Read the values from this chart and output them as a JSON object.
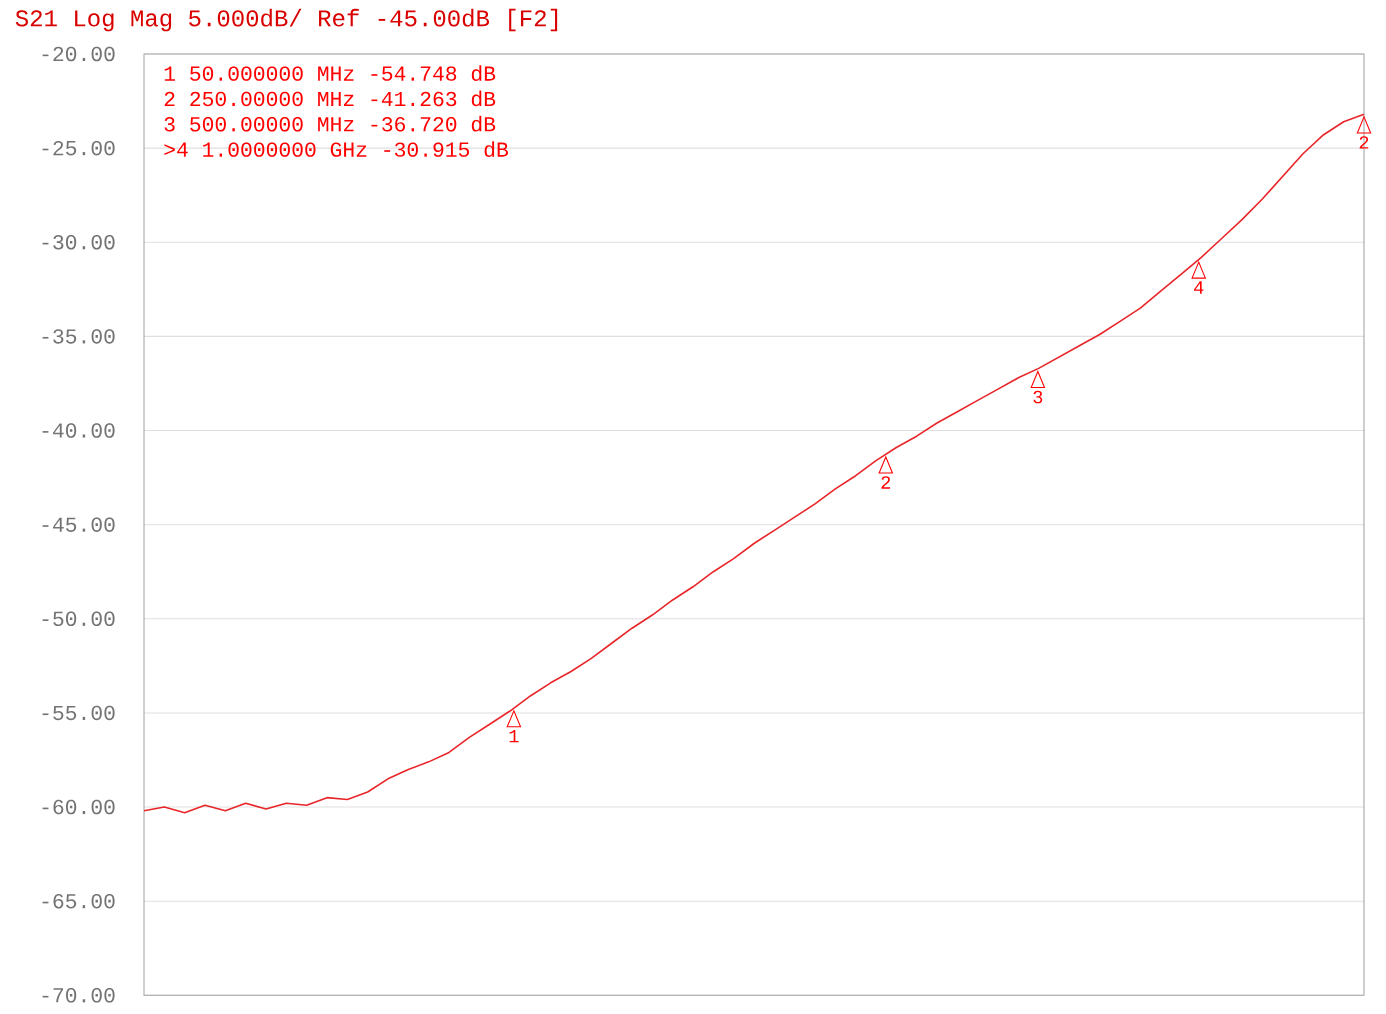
{
  "chart_data": {
    "type": "line",
    "title": "S21 Log Mag 5.000dB/ Ref -45.00dB [F2]",
    "categories": [
      null,
      null,
      null,
      null,
      null,
      null,
      null,
      null,
      null,
      null,
      null,
      null,
      null,
      null,
      null,
      null,
      null,
      null,
      null,
      null,
      null,
      null,
      null,
      null,
      null,
      null,
      null,
      null,
      null,
      null,
      null,
      null,
      null,
      null,
      null,
      null,
      null,
      null,
      null,
      null,
      null,
      null,
      null,
      null,
      null,
      null,
      null,
      null,
      null,
      null,
      null,
      null,
      null,
      null,
      null,
      null,
      null,
      null,
      null,
      null,
      null
    ],
    "series": [
      {
        "color": "#e8262a",
        "values": [
          -60.2,
          -60.0,
          -60.3,
          -59.9,
          -60.2,
          -59.8,
          -60.1,
          -59.8,
          -59.9,
          -59.5,
          -59.6,
          -59.2,
          -58.5,
          -58.0,
          -57.6,
          -57.1,
          -56.3,
          -55.6,
          -54.9,
          -54.1,
          -53.4,
          -52.8,
          -52.1,
          -51.3,
          -50.5,
          -49.8,
          -49.0,
          -48.3,
          -47.5,
          -46.8,
          -46.0,
          -45.3,
          -44.6,
          -43.9,
          -43.1,
          -42.4,
          -41.6,
          -40.9,
          -40.3,
          -39.6,
          -39.0,
          -38.4,
          -37.8,
          -37.2,
          -36.7,
          -36.1,
          -35.5,
          -34.9,
          -34.2,
          -33.5,
          -32.6,
          -31.7,
          -30.8,
          -29.8,
          -28.8,
          -27.7,
          -26.5,
          -25.3,
          -24.3,
          -23.6,
          -23.2
        ]
      }
    ],
    "ylim": [
      -70,
      -20
    ],
    "yticks": [
      {
        "value": -70,
        "label": "-70.00"
      },
      {
        "value": -65,
        "label": "-65.00"
      },
      {
        "value": -60,
        "label": "-60.00"
      },
      {
        "value": -55,
        "label": "-55.00"
      },
      {
        "value": -50,
        "label": "-50.00"
      },
      {
        "value": -45,
        "label": "-45.00"
      },
      {
        "value": -40,
        "label": "-40.00"
      },
      {
        "value": -35,
        "label": "-35.00"
      },
      {
        "value": -30,
        "label": "-30.00"
      },
      {
        "value": -25,
        "label": "-25.00"
      },
      {
        "value": -20,
        "label": "-20.00"
      }
    ],
    "grid": "y",
    "annotations": [
      "1  50.000000 MHz -54.748 dB",
      "2  250.00000 MHz -41.263 dB",
      "3  500.00000 MHz -36.720 dB",
      ">4 1.0000000 GHz -30.915 dB",
      {
        "text": "1",
        "y": -54.748
      },
      {
        "text": "2",
        "y": -41.263
      },
      {
        "text": "3",
        "y": -36.72
      },
      {
        "text": "4",
        "y": -30.915
      },
      {
        "text": "2",
        "y": -23.2
      }
    ]
  }
}
